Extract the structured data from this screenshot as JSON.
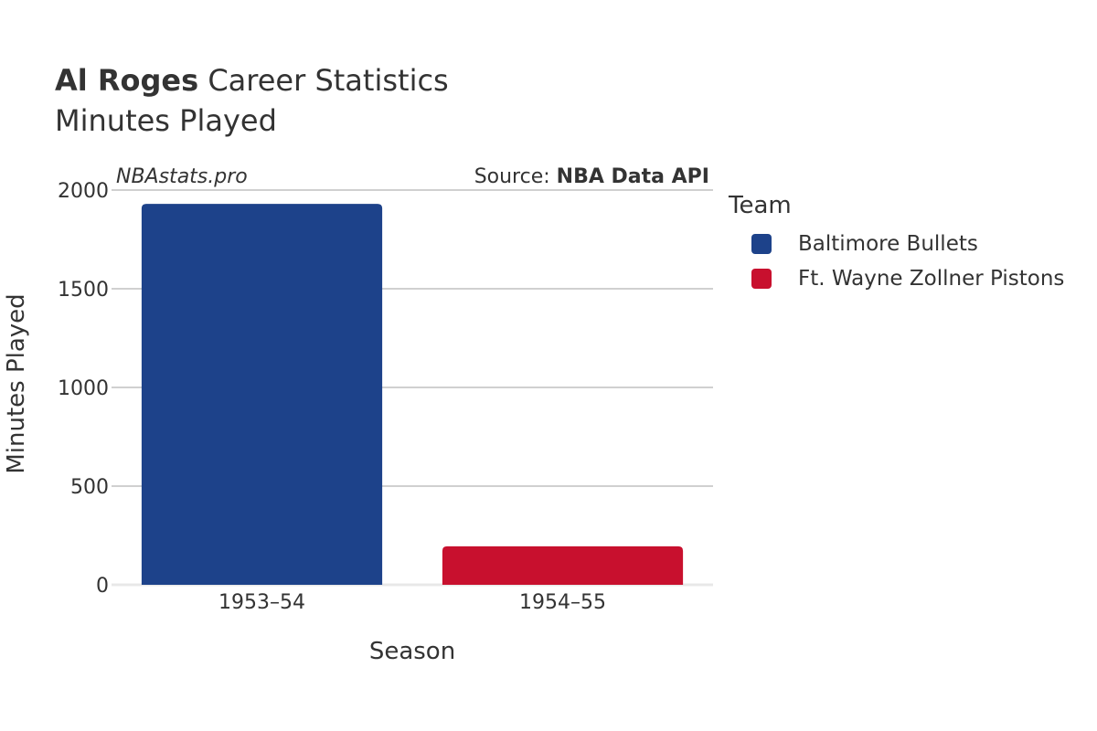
{
  "header": {
    "title_bold": "Al Roges",
    "title_rest": " Career Statistics",
    "subtitle": "Minutes Played"
  },
  "watermark": "NBAstats.pro",
  "source": {
    "prefix": "Source: ",
    "name": "NBA Data API"
  },
  "legend": {
    "title": "Team",
    "items": [
      {
        "label": "Baltimore Bullets",
        "color": "#1d428a"
      },
      {
        "label": "Ft. Wayne Zollner Pistons",
        "color": "#c8102e"
      }
    ]
  },
  "chart_data": {
    "type": "bar",
    "title": "Al Roges Career Statistics",
    "subtitle": "Minutes Played",
    "xlabel": "Season",
    "ylabel": "Minutes Played",
    "categories": [
      "1953–54",
      "1954–55"
    ],
    "series": [
      {
        "name": "Baltimore Bullets",
        "color": "#1d428a",
        "values": [
          1930,
          null
        ]
      },
      {
        "name": "Ft. Wayne Zollner Pistons",
        "color": "#c8102e",
        "values": [
          null,
          195
        ]
      }
    ],
    "ylim": [
      0,
      2000
    ],
    "yticks": [
      0,
      500,
      1000,
      1500,
      2000
    ],
    "grid": true,
    "legend_position": "right"
  }
}
